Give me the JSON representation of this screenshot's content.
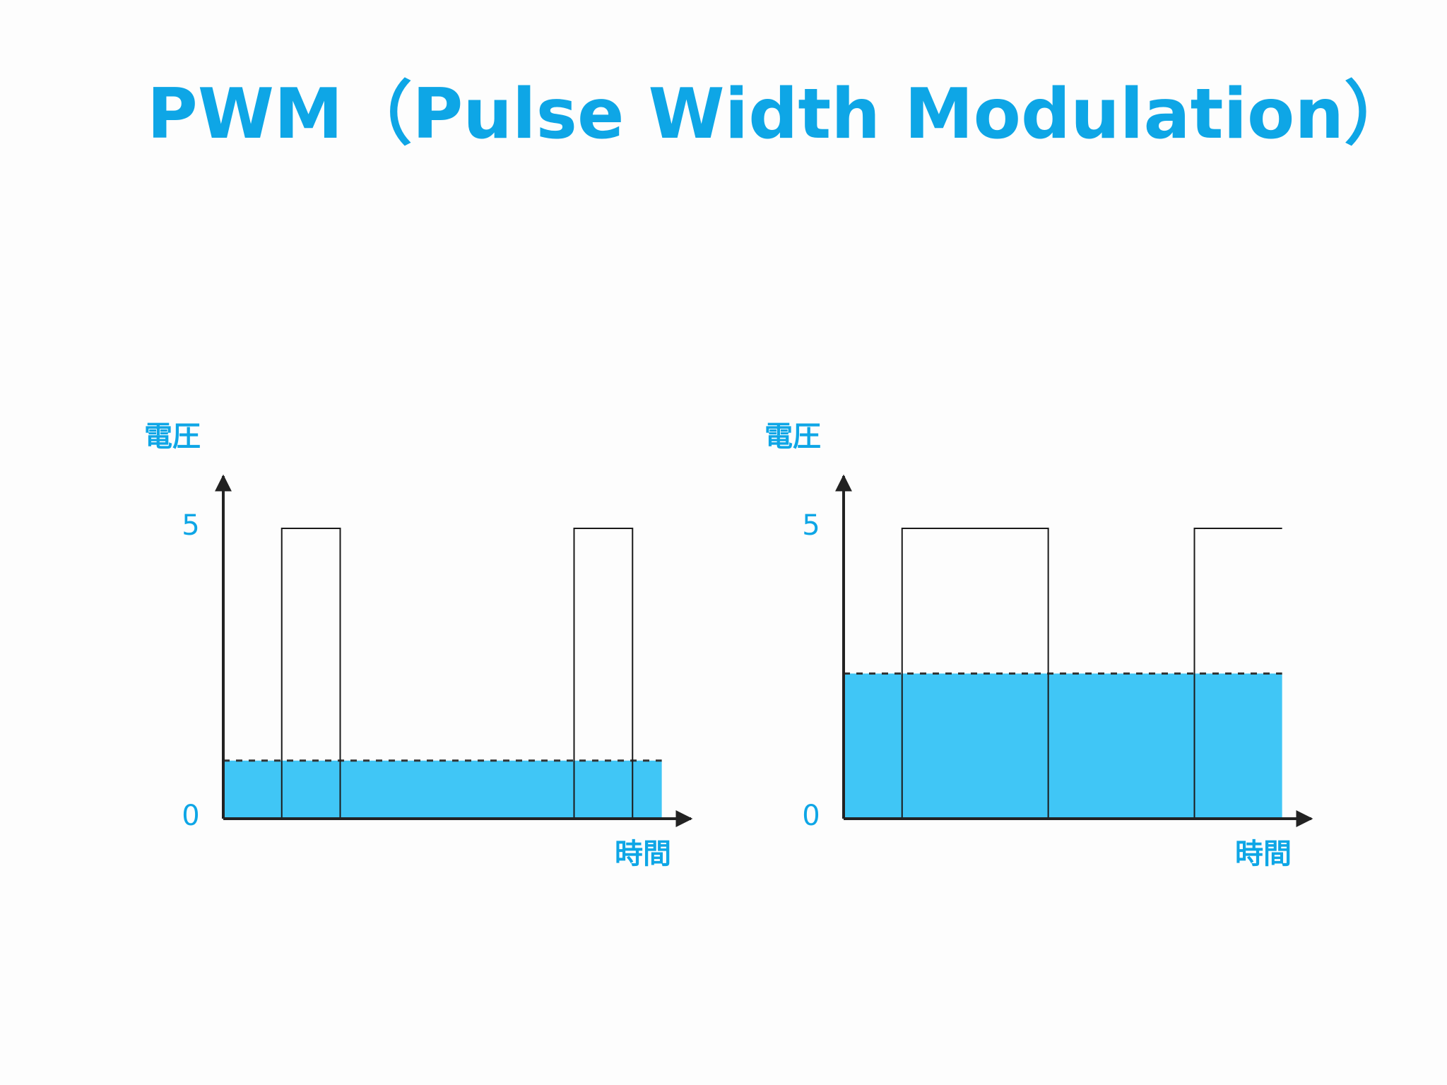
{
  "title": "PWM（Pulse Width Modulation）",
  "chart_data": [
    {
      "type": "line",
      "y_label": "電圧",
      "x_label": "時間",
      "xlim": [
        0,
        16
      ],
      "ylim": [
        0,
        5.9
      ],
      "yticks": [
        0,
        5
      ],
      "grid": false,
      "series": [
        {
          "color": "#40c6f6",
          "x": [
            0,
            15
          ],
          "values": [
            1,
            1
          ],
          "fill": true,
          "dashed": true
        },
        {
          "color": "#1a1a1a",
          "x": [
            0,
            2,
            2,
            4,
            4,
            12,
            12,
            14,
            14,
            15
          ],
          "values": [
            0,
            0,
            5,
            5,
            0,
            0,
            5,
            5,
            0,
            0
          ]
        }
      ]
    },
    {
      "type": "line",
      "y_label": "電圧",
      "x_label": "時間",
      "xlim": [
        0,
        16
      ],
      "ylim": [
        0,
        5.9
      ],
      "yticks": [
        0,
        5
      ],
      "grid": false,
      "series": [
        {
          "color": "#40c6f6",
          "x": [
            0,
            15
          ],
          "values": [
            2.5,
            2.5
          ],
          "fill": true,
          "dashed": true
        },
        {
          "color": "#1a1a1a",
          "x": [
            0,
            2,
            2,
            7,
            7,
            12,
            12,
            15
          ],
          "values": [
            0,
            0,
            5,
            5,
            0,
            0,
            5,
            5
          ]
        }
      ]
    }
  ]
}
